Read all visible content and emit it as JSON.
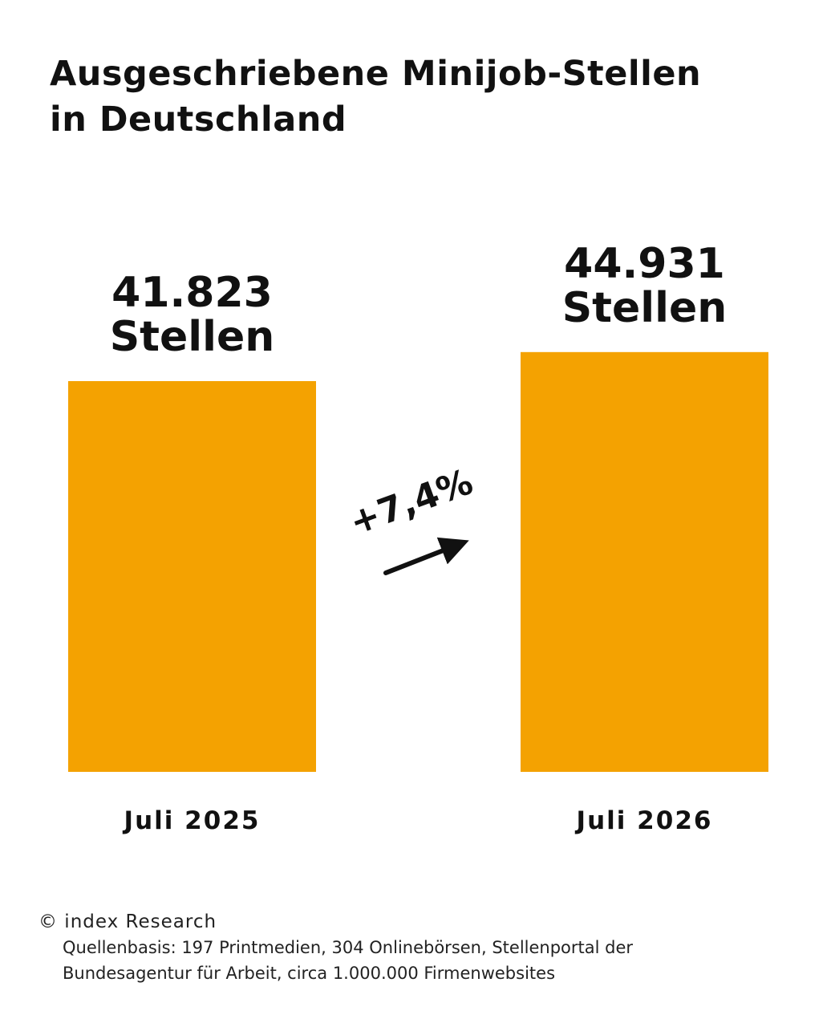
{
  "title_lines": [
    "Ausgeschriebene Minijob-Stellen",
    "in Deutschland"
  ],
  "chart_data": {
    "type": "bar",
    "categories": [
      "Juli 2025",
      "Juli 2026"
    ],
    "values": [
      41823,
      44931
    ],
    "value_labels": [
      [
        "41.823",
        "Stellen"
      ],
      [
        "44.931",
        "Stellen"
      ]
    ],
    "change_label": "+7,4%",
    "bar_color": "#F4A201",
    "grid": false
  },
  "footer": {
    "copyright": "© index Research",
    "source": "Quellenbasis: 197 Printmedien, 304 Onlinebörsen, Stellenportal der Bundesagentur für Arbeit, circa 1.000.000 Firmenwebsites"
  }
}
